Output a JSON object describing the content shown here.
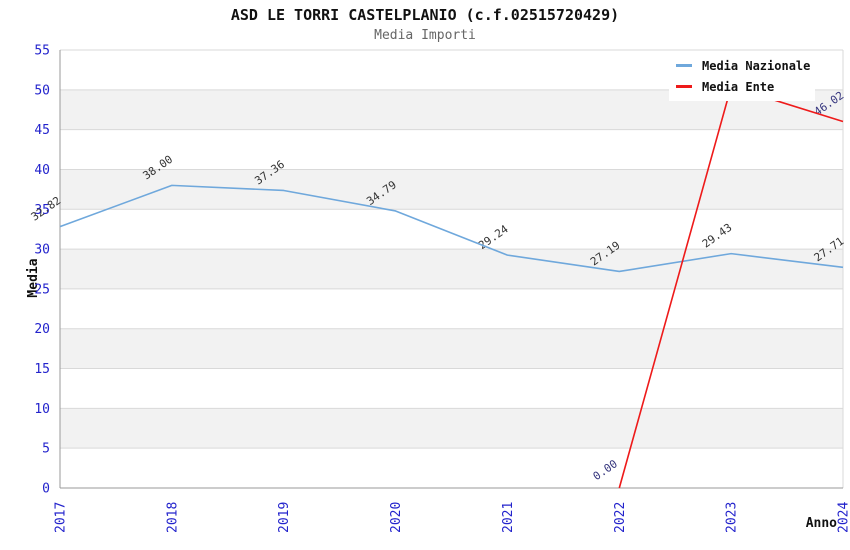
{
  "header": {
    "title": "ASD LE TORRI CASTELPLANIO (c.f.02515720429)",
    "subtitle": "Media Importi"
  },
  "chart_data": {
    "type": "line",
    "x": [
      2017,
      2018,
      2019,
      2020,
      2021,
      2022,
      2023,
      2024
    ],
    "xlabel": "Anno",
    "ylabel": "Media",
    "ylim": [
      0,
      55
    ],
    "ytick_step": 5,
    "grid": true,
    "background_bands": true,
    "legend_position": "top-right",
    "series": [
      {
        "name": "Media Nazionale",
        "color": "#6fa8dc",
        "x": [
          2017,
          2018,
          2019,
          2020,
          2021,
          2022,
          2023,
          2024
        ],
        "values": [
          32.82,
          38.0,
          37.36,
          34.79,
          29.24,
          27.19,
          29.43,
          27.71
        ],
        "labels": [
          "32.82",
          "38.00",
          "37.36",
          "34.79",
          "29.24",
          "27.19",
          "29.43",
          "27.71"
        ],
        "label_color": "#333333"
      },
      {
        "name": "Media Ente",
        "color": "#ee1a1a",
        "x": [
          2022,
          2023,
          2024
        ],
        "values": [
          0.0,
          50.4,
          46.02
        ],
        "labels": [
          "0.00",
          "",
          "46.02"
        ],
        "label_color": "#34347d"
      }
    ]
  },
  "colors": {
    "tick_label": "#2323cc",
    "band": "#f2f2f2",
    "grid": "#d9d9d9",
    "axis": "#999999",
    "title": "#111111",
    "subtitle": "#666666",
    "legend_text": "#111111",
    "legend_background": "#ffffff"
  }
}
